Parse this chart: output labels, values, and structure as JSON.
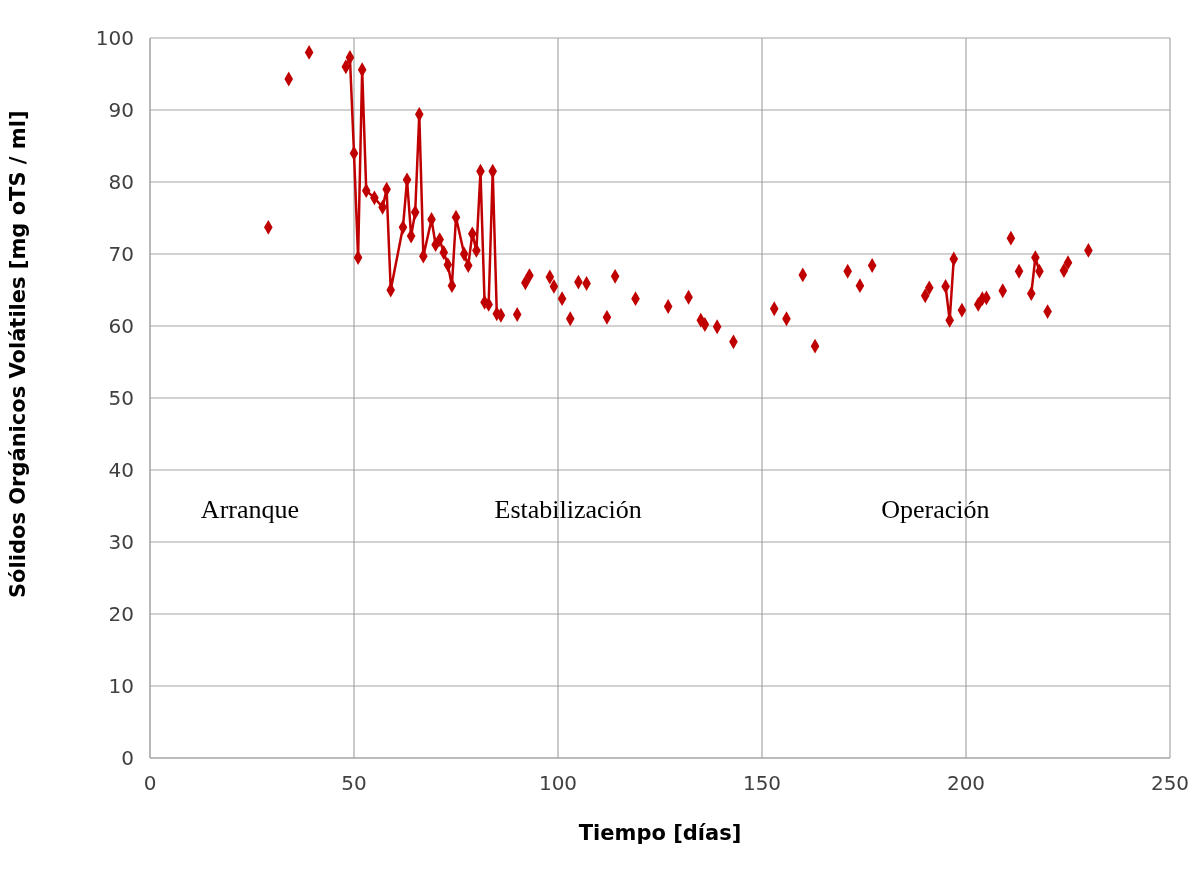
{
  "chart_data": {
    "type": "scatter",
    "xlabel": "Tiempo [días]",
    "ylabel": "Sólidos Orgánicos Volátiles [mg oTS / ml]",
    "annotations": [
      "Arranque",
      "Estabilización",
      "Operación"
    ],
    "xlim": [
      0,
      250
    ],
    "xticks": [
      0,
      50,
      100,
      150,
      200,
      250
    ],
    "ylim": [
      0,
      100
    ],
    "yticks": [
      0,
      10,
      20,
      30,
      40,
      50,
      60,
      70,
      80,
      90,
      100
    ],
    "grid": true,
    "legend": false,
    "marker": "diamond",
    "series": [
      {
        "type": "scatter",
        "color": "#c00000",
        "x": [
          29,
          34,
          39,
          90,
          92,
          93,
          98,
          99,
          101,
          103,
          105,
          107,
          112,
          114,
          119,
          127,
          132,
          135,
          136,
          139,
          143,
          153,
          156,
          160,
          163,
          171,
          174,
          177,
          190,
          191,
          199,
          203,
          204,
          205,
          209,
          211,
          213,
          220,
          224,
          225,
          230
        ],
        "values": [
          73.7,
          94.3,
          98,
          61.6,
          66,
          67,
          66.8,
          65.5,
          63.8,
          61,
          66.1,
          65.9,
          61.2,
          66.9,
          63.8,
          62.7,
          64,
          60.8,
          60.2,
          59.9,
          57.8,
          62.4,
          61,
          67.1,
          57.2,
          67.6,
          65.6,
          68.4,
          64.2,
          65.3,
          62.2,
          63,
          63.8,
          63.9,
          64.9,
          72.2,
          67.6,
          62,
          67.7,
          68.8,
          70.5
        ]
      },
      {
        "type": "line",
        "color": "#c00000",
        "x": [
          48,
          49,
          50,
          51,
          52,
          53,
          55,
          57,
          58,
          59,
          62,
          63,
          64,
          65,
          66,
          67,
          69,
          70,
          71,
          72,
          73,
          74,
          75,
          77,
          78,
          79,
          80,
          81,
          82,
          83,
          84,
          85,
          86
        ],
        "values": [
          96,
          97.3,
          84,
          69.5,
          95.6,
          78.8,
          77.8,
          76.5,
          79,
          65,
          73.7,
          80.3,
          72.5,
          75.8,
          89.4,
          69.7,
          74.8,
          71.3,
          72,
          70.2,
          68.5,
          65.6,
          75.1,
          70,
          68.4,
          72.8,
          70.5,
          81.5,
          63.3,
          63,
          81.5,
          61.7,
          61.5
        ]
      },
      {
        "type": "line",
        "color": "#c00000",
        "x": [
          195,
          196,
          197
        ],
        "values": [
          65.5,
          60.8,
          69.3
        ]
      },
      {
        "type": "line",
        "color": "#c00000",
        "x": [
          216,
          217,
          218
        ],
        "values": [
          64.5,
          69.5,
          67.6
        ]
      }
    ]
  }
}
